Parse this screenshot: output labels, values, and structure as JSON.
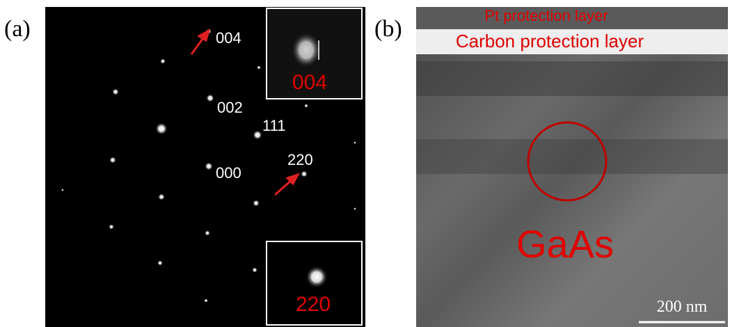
{
  "panels": [
    {
      "label": "(a)",
      "spot_labels": [
        "004",
        "002",
        "111",
        "000",
        "220"
      ],
      "insets": [
        "004",
        "220"
      ]
    },
    {
      "label": "(b)",
      "layers": [
        "Pt protection layer",
        "Carbon protection layer"
      ],
      "region": "GaAs",
      "scale_bar": "200 nm"
    }
  ]
}
